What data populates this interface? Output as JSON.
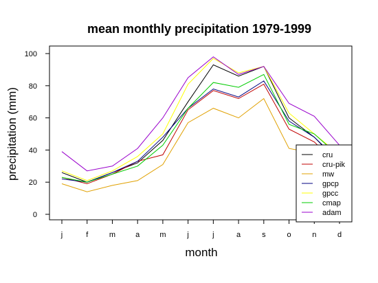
{
  "chart_data": {
    "type": "line",
    "title": "mean monthly precipitation 1979-1999",
    "xlabel": "month",
    "ylabel": "precipitation (mm)",
    "categories": [
      "j",
      "f",
      "m",
      "a",
      "m",
      "j",
      "j",
      "a",
      "s",
      "o",
      "n",
      "d"
    ],
    "ylim": [
      0,
      100
    ],
    "yticks": [
      0,
      20,
      40,
      60,
      80,
      100
    ],
    "grid": false,
    "legend_position": "bottom-right",
    "series": [
      {
        "name": "cru",
        "color": "#000000",
        "values": [
          26,
          20,
          26,
          32,
          46,
          70,
          93,
          86,
          92,
          60,
          48,
          32
        ]
      },
      {
        "name": "cru-pik",
        "color": "#c00000",
        "values": [
          23,
          19,
          25,
          33,
          37,
          65,
          77,
          72,
          81,
          53,
          45,
          30
        ]
      },
      {
        "name": "mw",
        "color": "#e0a000",
        "values": [
          19,
          14,
          18,
          21,
          31,
          57,
          66,
          60,
          72,
          41,
          38,
          28
        ]
      },
      {
        "name": "gpcp",
        "color": "#000080",
        "values": [
          22,
          20,
          26,
          33,
          48,
          66,
          78,
          73,
          83,
          58,
          48,
          33
        ]
      },
      {
        "name": "gpcc",
        "color": "#ffff00",
        "values": [
          27,
          21,
          27,
          36,
          50,
          81,
          97,
          88,
          92,
          63,
          50,
          37
        ]
      },
      {
        "name": "cmap",
        "color": "#00cc00",
        "values": [
          23,
          20,
          25,
          30,
          43,
          66,
          82,
          79,
          87,
          56,
          50,
          36
        ]
      },
      {
        "name": "adam",
        "color": "#9900cc",
        "values": [
          39,
          27,
          30,
          41,
          60,
          85,
          98,
          87,
          92,
          69,
          61,
          43
        ]
      }
    ]
  }
}
